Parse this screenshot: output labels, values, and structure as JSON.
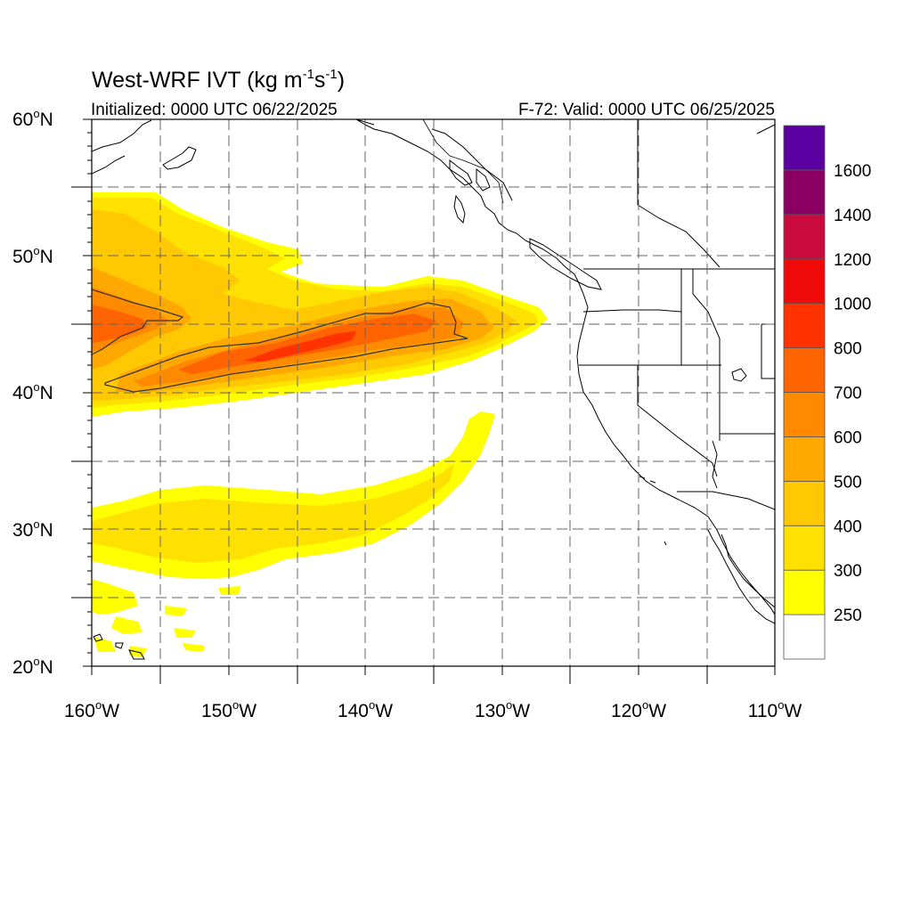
{
  "title": {
    "text": "West-WRF IVT (kg m",
    "exp1": "-1",
    "mid": "s",
    "exp2": "-1",
    "end": ")"
  },
  "initialized": "Initialized: 0000 UTC 06/22/2025",
  "valid": "F-72: Valid: 0000 UTC 06/25/2025",
  "map": {
    "lon_range": [
      -160,
      -110
    ],
    "lat_range": [
      20,
      60
    ],
    "lat_ticks": [
      {
        "value": 60,
        "label": "60",
        "suffix": "N"
      },
      {
        "value": 50,
        "label": "50",
        "suffix": "N"
      },
      {
        "value": 40,
        "label": "40",
        "suffix": "N"
      },
      {
        "value": 30,
        "label": "30",
        "suffix": "N"
      },
      {
        "value": 20,
        "label": "20",
        "suffix": "N"
      }
    ],
    "lon_ticks": [
      {
        "value": -160,
        "label": "160",
        "suffix": "W"
      },
      {
        "value": -150,
        "label": "150",
        "suffix": "W"
      },
      {
        "value": -140,
        "label": "140",
        "suffix": "W"
      },
      {
        "value": -130,
        "label": "130",
        "suffix": "W"
      },
      {
        "value": -120,
        "label": "120",
        "suffix": "W"
      },
      {
        "value": -110,
        "label": "110",
        "suffix": "W"
      }
    ],
    "degree_symbol": "o",
    "gridlines": "dashed every 5 degrees"
  },
  "colorbar": {
    "colors": [
      "#ffffff",
      "#ffff00",
      "#ffe100",
      "#ffc800",
      "#ffa800",
      "#ff8a00",
      "#ff6400",
      "#ff3200",
      "#f00a0a",
      "#c80a3c",
      "#8c0064",
      "#5a00a0"
    ],
    "labels": [
      "250",
      "300",
      "400",
      "500",
      "600",
      "700",
      "800",
      "1000",
      "1200",
      "1400",
      "1600"
    ]
  },
  "colors": {
    "c250": "#ffff00",
    "c300": "#ffe100",
    "c400": "#ffc800",
    "c500": "#ffa800",
    "c600": "#ff8a00",
    "c700": "#ff6400",
    "c800": "#ff3200"
  }
}
